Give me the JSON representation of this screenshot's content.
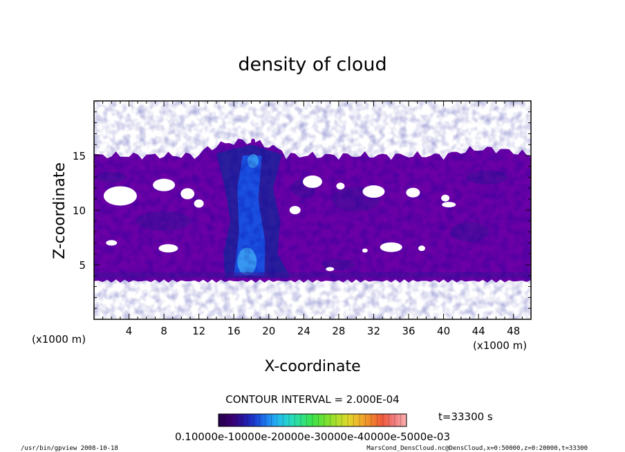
{
  "chart_data": {
    "type": "heatmap",
    "title": "density of cloud",
    "xlabel": "X-coordinate",
    "ylabel": "Z-coordinate",
    "x_unit": "(x1000 m)",
    "z_unit": "(x1000 m)",
    "xlim": [
      0,
      50
    ],
    "ylim": [
      0,
      20
    ],
    "x_ticks": [
      "4",
      "8",
      "12",
      "16",
      "20",
      "24",
      "28",
      "32",
      "36",
      "40",
      "44",
      "48"
    ],
    "x_tick_values": [
      4,
      8,
      12,
      16,
      20,
      24,
      28,
      32,
      36,
      40,
      44,
      48
    ],
    "y_ticks": [
      "5",
      "10",
      "15"
    ],
    "y_tick_values": [
      5,
      10,
      15
    ],
    "cloud_layer_range": [
      3.5,
      15
    ],
    "cloud_top_max": 16.5,
    "contour_interval_text": "CONTOUR INTERVAL = 2.000E-04",
    "contour_interval": 0.0002,
    "colorbar_range": [
      0.0001,
      0.0005
    ],
    "colorbar_tick_labels": [
      "0.1000E-03",
      "0.2000E-03",
      "0.3000E-03",
      "0.4000E-03",
      "0.5000E-03"
    ],
    "colorbar_overlap_text": "0.10000e-10000e-20000e-30000e-40000e-5000e-03",
    "colorbar_colors": [
      "#27004e",
      "#3a0070",
      "#2814a0",
      "#1a3cd0",
      "#1e7cf0",
      "#24b8f0",
      "#26d8c8",
      "#2ee08c",
      "#3ce24a",
      "#6ee032",
      "#a8e02c",
      "#dcd82c",
      "#f0b42c",
      "#f0882c",
      "#f05a3a",
      "#f07a7a",
      "#f8a8a8"
    ],
    "time_label": "t=33300 s",
    "fill_colors": {
      "background": "#6a00a6",
      "mid": "#2a1e9c",
      "core": "#1a4fe0",
      "bright": "#3fa9f5"
    }
  },
  "footer": {
    "left": "/usr/bin/gpview  2008-10-18",
    "right": "MarsCond_DensCloud.nc@DensCloud,x=0:50000,z=0:20000,t=33300"
  }
}
